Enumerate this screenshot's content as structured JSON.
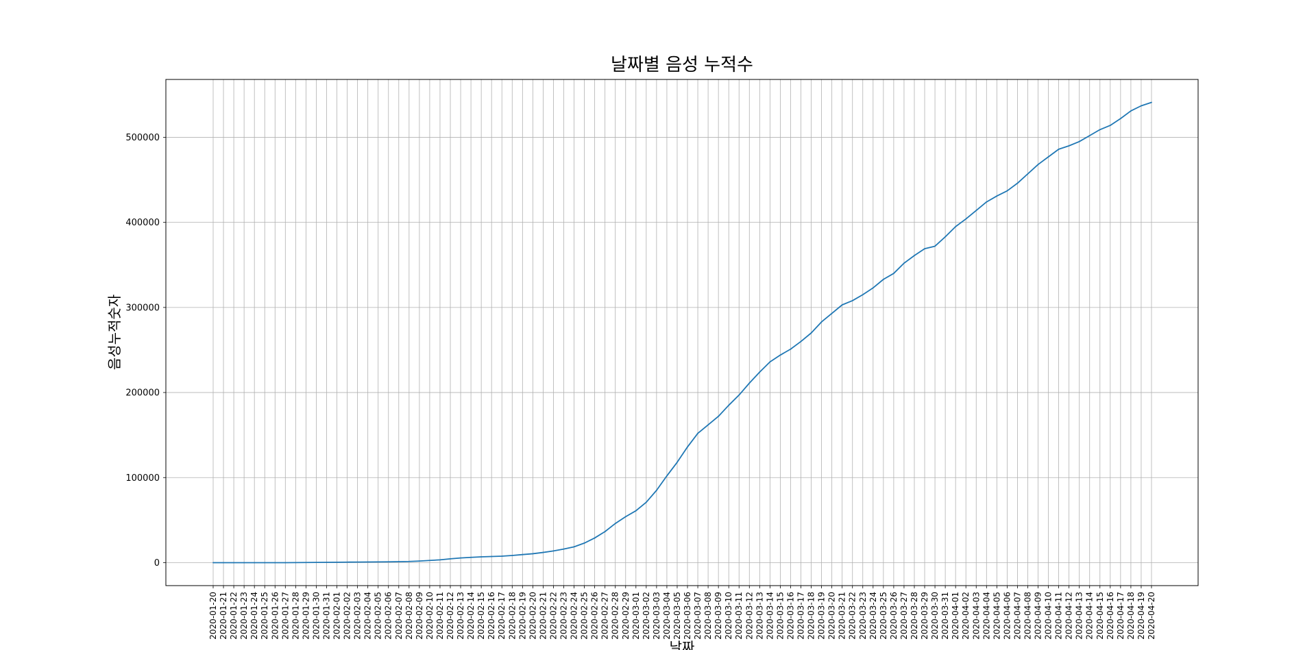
{
  "chart_data": {
    "type": "line",
    "title": "날짜별 음성 누적수",
    "xlabel": "날짜",
    "ylabel": "음성누적숫자",
    "ylim": [
      -27000,
      568000
    ],
    "yticks": [
      0,
      100000,
      200000,
      300000,
      400000,
      500000
    ],
    "ytick_labels": [
      "0",
      "100000",
      "200000",
      "300000",
      "400000",
      "500000"
    ],
    "grid": true,
    "line_color": "#1f77b4",
    "x": [
      "2020-01-20",
      "2020-01-21",
      "2020-01-22",
      "2020-01-23",
      "2020-01-24",
      "2020-01-25",
      "2020-01-26",
      "2020-01-27",
      "2020-01-28",
      "2020-01-29",
      "2020-01-30",
      "2020-01-31",
      "2020-02-01",
      "2020-02-02",
      "2020-02-03",
      "2020-02-04",
      "2020-02-05",
      "2020-02-06",
      "2020-02-07",
      "2020-02-08",
      "2020-02-09",
      "2020-02-10",
      "2020-02-11",
      "2020-02-12",
      "2020-02-13",
      "2020-02-14",
      "2020-02-15",
      "2020-02-16",
      "2020-02-17",
      "2020-02-18",
      "2020-02-19",
      "2020-02-20",
      "2020-02-21",
      "2020-02-22",
      "2020-02-23",
      "2020-02-24",
      "2020-02-25",
      "2020-02-26",
      "2020-02-27",
      "2020-02-28",
      "2020-02-29",
      "2020-03-01",
      "2020-03-02",
      "2020-03-03",
      "2020-03-04",
      "2020-03-05",
      "2020-03-06",
      "2020-03-07",
      "2020-03-08",
      "2020-03-09",
      "2020-03-10",
      "2020-03-11",
      "2020-03-12",
      "2020-03-13",
      "2020-03-14",
      "2020-03-15",
      "2020-03-16",
      "2020-03-17",
      "2020-03-18",
      "2020-03-19",
      "2020-03-20",
      "2020-03-21",
      "2020-03-22",
      "2020-03-23",
      "2020-03-24",
      "2020-03-25",
      "2020-03-26",
      "2020-03-27",
      "2020-03-28",
      "2020-03-29",
      "2020-03-30",
      "2020-03-31",
      "2020-04-01",
      "2020-04-02",
      "2020-04-03",
      "2020-04-04",
      "2020-04-05",
      "2020-04-06",
      "2020-04-07",
      "2020-04-08",
      "2020-04-09",
      "2020-04-10",
      "2020-04-11",
      "2020-04-12",
      "2020-04-13",
      "2020-04-14",
      "2020-04-15",
      "2020-04-16",
      "2020-04-17",
      "2020-04-18",
      "2020-04-19",
      "2020-04-20"
    ],
    "series": [
      {
        "values": [
          0,
          0,
          0,
          0,
          0,
          0,
          0,
          0,
          100,
          200,
          300,
          400,
          500,
          600,
          700,
          800,
          900,
          1000,
          1200,
          1400,
          1900,
          2600,
          3300,
          4500,
          5500,
          6200,
          6800,
          7200,
          7600,
          8400,
          9500,
          10500,
          12000,
          13800,
          16000,
          18600,
          23000,
          29000,
          36500,
          46000,
          54000,
          61000,
          71000,
          85000,
          102000,
          118000,
          136000,
          152000,
          162000,
          172000,
          185000,
          197000,
          211000,
          224000,
          236000,
          244000,
          251000,
          260000,
          270000,
          283000,
          293000,
          303000,
          308000,
          315000,
          323000,
          333000,
          340000,
          352000,
          361000,
          369000,
          372000,
          383000,
          395000,
          404000,
          414000,
          424000,
          431000,
          437000,
          446000,
          457000,
          468000,
          477000,
          486000,
          490000,
          495000,
          502000,
          509000,
          514000,
          522000,
          531000,
          537000,
          541000
        ]
      }
    ]
  }
}
